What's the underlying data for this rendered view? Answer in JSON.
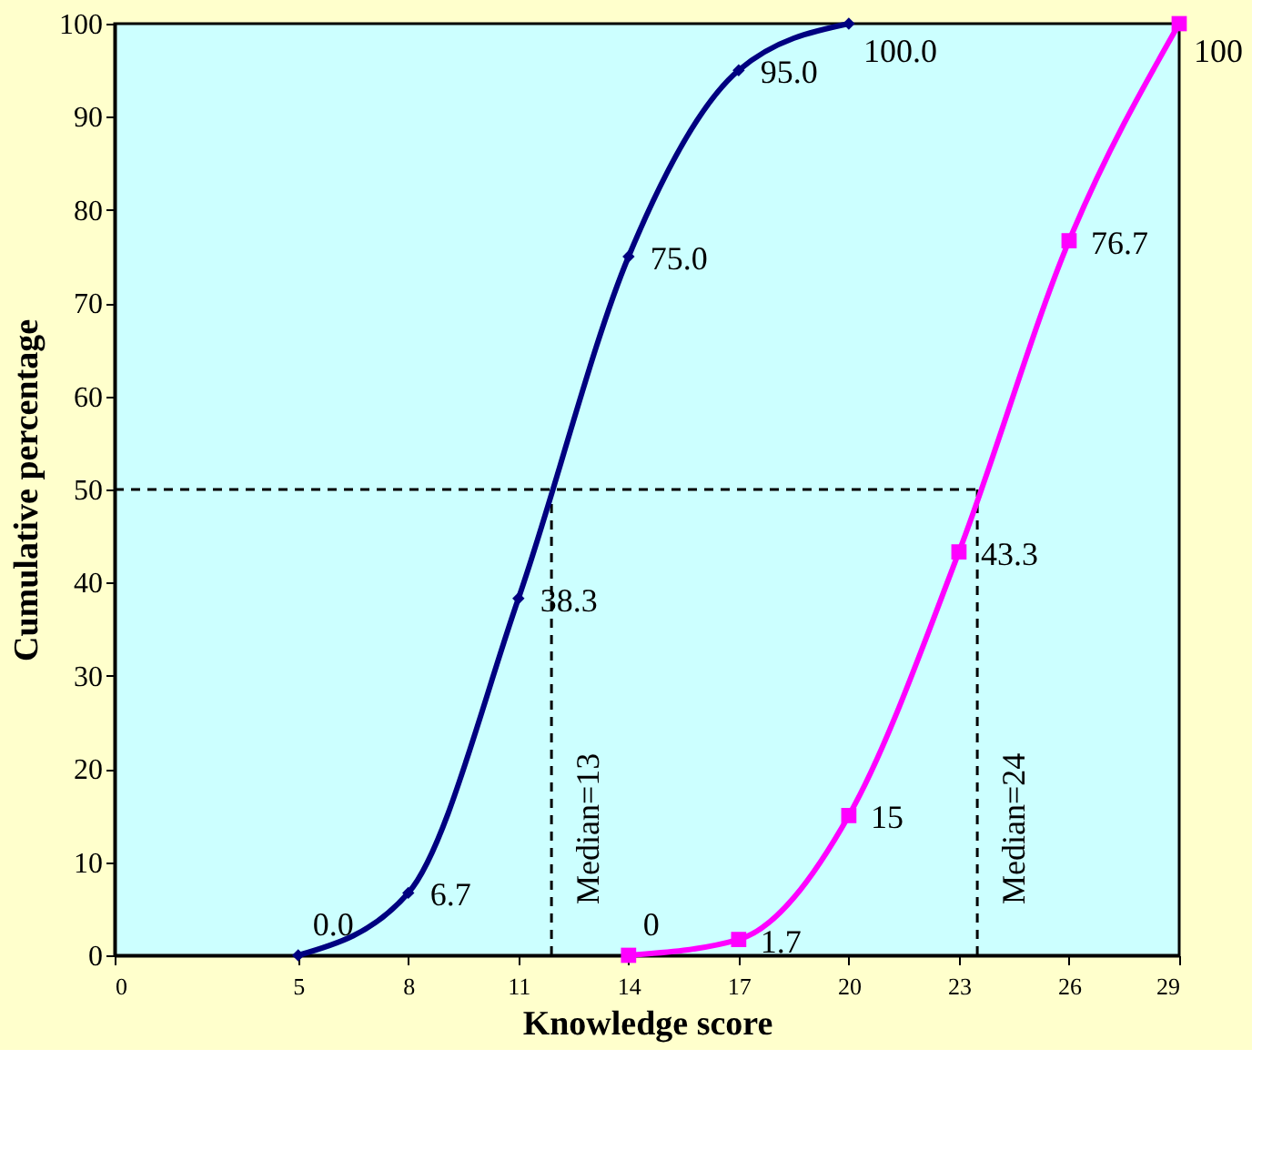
{
  "chart_data": {
    "type": "line",
    "xlabel": "Knowledge score",
    "ylabel": "Cumulative percentage",
    "xlim": [
      0,
      29
    ],
    "xticks": [
      0,
      5,
      8,
      11,
      14,
      17,
      20,
      23,
      26,
      29
    ],
    "ylim": [
      0,
      100
    ],
    "yticks": [
      0,
      10,
      20,
      30,
      40,
      50,
      60,
      70,
      80,
      90,
      100
    ],
    "grid": false,
    "series": [
      {
        "color": "#000080",
        "marker": "diamond",
        "x": [
          5,
          8,
          11,
          14,
          17,
          20
        ],
        "values": [
          0.0,
          6.7,
          38.3,
          75.0,
          95.0,
          100.0
        ],
        "value_labels": [
          "0.0",
          "6.7",
          "38.3",
          "75.0",
          "95.0",
          "100.0"
        ]
      },
      {
        "color": "#ff00ff",
        "marker": "square",
        "x": [
          14,
          17,
          20,
          23,
          26,
          29
        ],
        "values": [
          0,
          1.7,
          15,
          43.3,
          76.7,
          100
        ],
        "value_labels": [
          "0",
          "1.7",
          "15",
          "43.3",
          "76.7",
          "100"
        ]
      }
    ],
    "ref_lines": [
      {
        "axis": "y",
        "value": 50,
        "line_style": "dashed"
      },
      {
        "axis": "x",
        "value": 11.9,
        "line_style": "dashed"
      },
      {
        "axis": "x",
        "value": 23.5,
        "line_style": "dashed"
      }
    ],
    "annotations": [
      "Median=13",
      "Median=24"
    ]
  }
}
